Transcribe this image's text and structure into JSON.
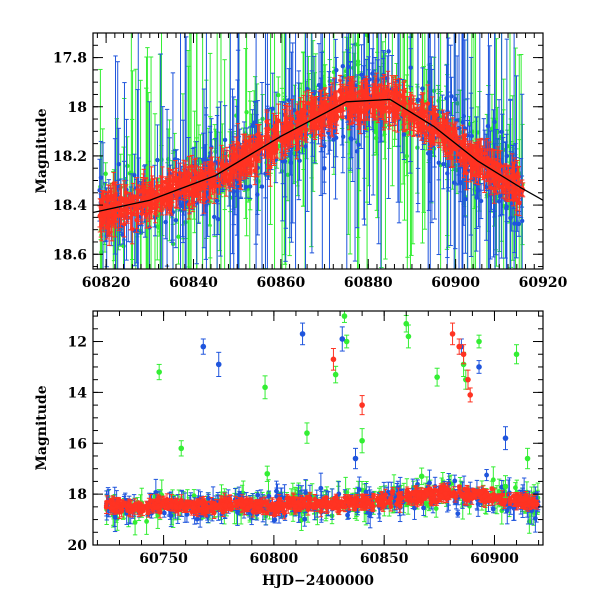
{
  "colors": {
    "green": "#33ee33",
    "blue": "#1f55dd",
    "red": "#ff3322",
    "trend": "#000000"
  },
  "chart_data": [
    {
      "type": "scatter",
      "name": "top-panel",
      "xlabel": "",
      "ylabel": "Magnitude",
      "xlim": [
        60817,
        60920
      ],
      "ylim": [
        18.66,
        17.7
      ],
      "y_inverted": true,
      "xticks": [
        60820,
        60840,
        60860,
        60880,
        60900,
        60920
      ],
      "yticks": [
        17.8,
        18,
        18.2,
        18.4,
        18.6
      ],
      "trend_line": {
        "x": [
          60817,
          60830,
          60845,
          60860,
          60875,
          60885,
          60895,
          60905,
          60915,
          60920
        ],
        "y": [
          18.43,
          18.38,
          18.28,
          18.12,
          17.98,
          17.97,
          18.08,
          18.22,
          18.33,
          18.38
        ]
      },
      "series_colors": [
        "green",
        "blue",
        "red"
      ],
      "grid": false,
      "error_bars": true
    },
    {
      "type": "scatter",
      "name": "bottom-panel",
      "xlabel": "HJD−2400000",
      "ylabel": "Magnitude",
      "xlim": [
        60718,
        60922
      ],
      "ylim": [
        20,
        10.8
      ],
      "y_inverted": true,
      "xticks": [
        60750,
        60800,
        60850,
        60900
      ],
      "yticks": [
        12,
        14,
        16,
        18,
        20
      ],
      "outliers": {
        "green": [
          [
            60748,
            13.2
          ],
          [
            60758,
            16.2
          ],
          [
            60796,
            13.8
          ],
          [
            60797,
            17.2
          ],
          [
            60815,
            15.6
          ],
          [
            60828,
            13.3
          ],
          [
            60832,
            11.0
          ],
          [
            60833,
            12.0
          ],
          [
            60840,
            15.9
          ],
          [
            60860,
            11.3
          ],
          [
            60861,
            11.8
          ],
          [
            60867,
            17.3
          ],
          [
            60874,
            13.4
          ],
          [
            60886,
            12.9
          ],
          [
            60887,
            13.5
          ],
          [
            60893,
            12.0
          ],
          [
            60905,
            17.7
          ],
          [
            60910,
            12.5
          ],
          [
            60915,
            16.6
          ]
        ],
        "blue": [
          [
            60768,
            12.2
          ],
          [
            60775,
            12.9
          ],
          [
            60813,
            11.7
          ],
          [
            60831,
            11.9
          ],
          [
            60837,
            16.6
          ],
          [
            60885,
            12.2
          ],
          [
            60893,
            13.0
          ],
          [
            60905,
            15.8
          ]
        ],
        "red": [
          [
            60827,
            12.7
          ],
          [
            60840,
            14.5
          ],
          [
            60881,
            11.7
          ],
          [
            60884,
            12.2
          ],
          [
            60886,
            12.5
          ],
          [
            60888,
            13.5
          ],
          [
            60889,
            14.1
          ]
        ]
      },
      "series_colors": [
        "green",
        "blue",
        "red"
      ],
      "grid": false,
      "error_bars": true
    }
  ]
}
